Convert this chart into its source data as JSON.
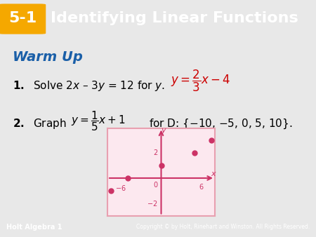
{
  "header_bg": "#4a9bbf",
  "header_text": "Identifying Linear Functions",
  "header_num": "5-1",
  "header_num_bg": "#f5a800",
  "warm_up_text": "Warm Up",
  "warm_up_color": "#1a5fa8",
  "body_bg": "#f0f0f0",
  "footer_bg": "#4a9bbf",
  "footer_left": "Holt Algebra 1",
  "footer_right": "Copyright © by Holt, Rinehart and Winston. All Rights Reserved.",
  "problem1_black": "1.  Solve 2x – 3y = 12 for y.",
  "problem1_answer_color": "#cc0000",
  "problem2_black_pre": "2.  Graph",
  "problem2_black_post": "for D: {–10, –5, 0, 5, 10}.",
  "graph_border_color": "#e8a0b0",
  "graph_bg": "#fce8ef",
  "graph_axis_color": "#cc3366",
  "graph_dot_color": "#cc3366",
  "graph_x_points": [
    -10,
    -5,
    0,
    5,
    10
  ],
  "graph_y_points": [
    -1,
    0,
    1,
    2,
    3
  ],
  "graph_xlim": [
    -8,
    8
  ],
  "graph_ylim": [
    -3,
    4
  ],
  "graph_xticks": [
    -6,
    6
  ],
  "graph_yticks": [
    -2,
    2
  ]
}
